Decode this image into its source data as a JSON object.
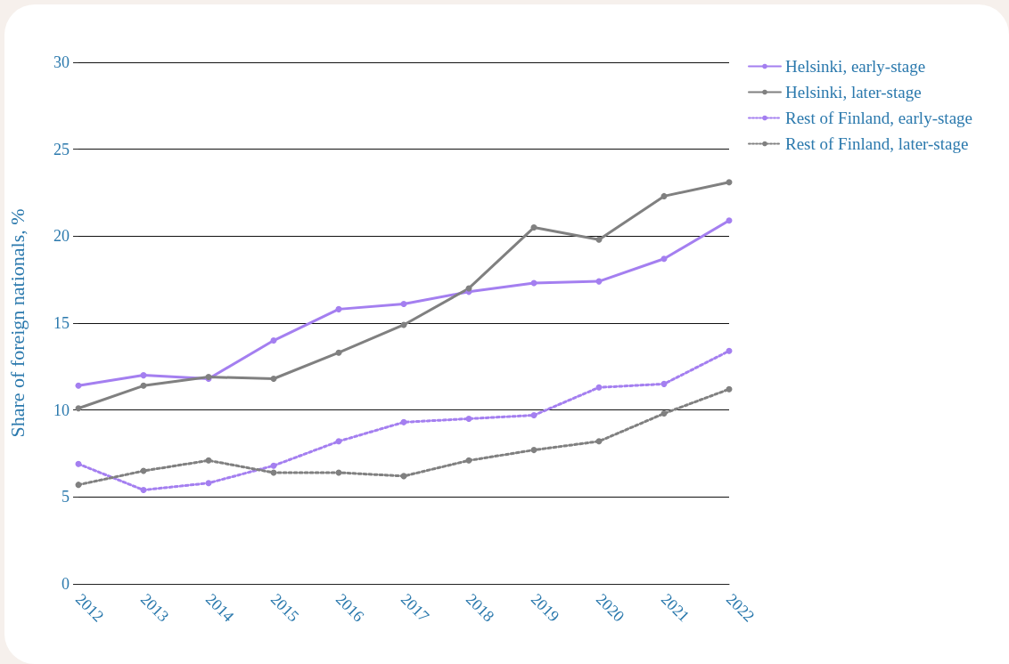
{
  "chart_data": {
    "type": "line",
    "ylabel": "Share of foreign nationals, %",
    "categories": [
      "2012",
      "2013",
      "2014",
      "2015",
      "2016",
      "2017",
      "2018",
      "2019",
      "2020",
      "2021",
      "2022"
    ],
    "series": [
      {
        "name": "Helsinki, early-stage",
        "color": "#a47ff0",
        "line_style": "solid",
        "values": [
          11.4,
          12.0,
          11.8,
          14.0,
          15.8,
          16.1,
          16.8,
          17.3,
          17.4,
          18.7,
          20.9
        ]
      },
      {
        "name": "Helsinki, later-stage",
        "color": "#808080",
        "line_style": "solid",
        "values": [
          10.1,
          11.4,
          11.9,
          11.8,
          13.3,
          14.9,
          17.0,
          20.5,
          19.8,
          22.3,
          23.1
        ]
      },
      {
        "name": "Rest of Finland, early-stage",
        "color": "#a47ff0",
        "line_style": "dotted",
        "values": [
          6.9,
          5.4,
          5.8,
          6.8,
          8.2,
          9.3,
          9.5,
          9.7,
          11.3,
          11.5,
          13.4
        ]
      },
      {
        "name": "Rest of Finland, later-stage",
        "color": "#808080",
        "line_style": "dotted",
        "values": [
          5.7,
          6.5,
          7.1,
          6.4,
          6.4,
          6.2,
          7.1,
          7.7,
          8.2,
          9.8,
          11.2
        ]
      }
    ],
    "ylim": [
      0,
      30
    ],
    "yticks": [
      0,
      5,
      10,
      15,
      20,
      25,
      30
    ],
    "grid": "y",
    "legend": "top right",
    "marker": "circle"
  }
}
